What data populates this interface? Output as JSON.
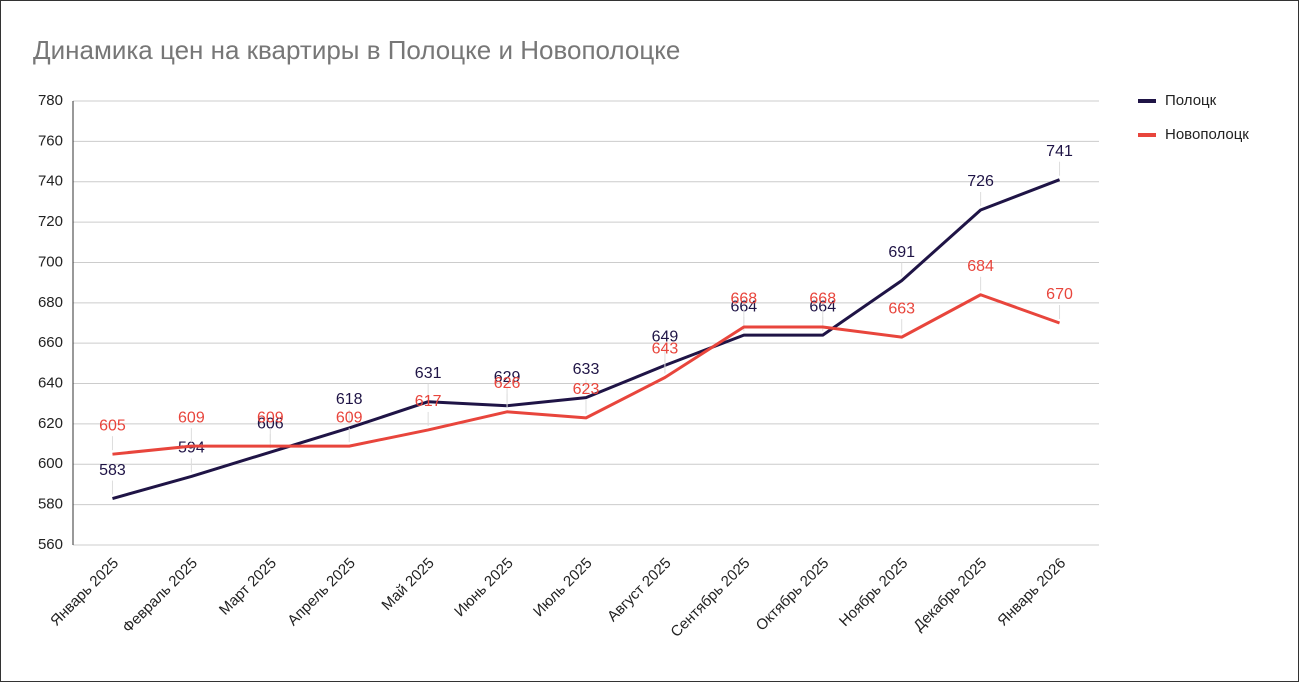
{
  "chart_data": {
    "type": "line",
    "title": "Динамика цен на квартиры в Полоцке и Новополоцке",
    "categories": [
      "Январь 2025",
      "Февраль 2025",
      "Март 2025",
      "Апрель 2025",
      "Май 2025",
      "Июнь 2025",
      "Июль 2025",
      "Август 2025",
      "Сентябрь 2025",
      "Октябрь 2025",
      "Ноябрь 2025",
      "Декабрь 2025",
      "Январь 2026"
    ],
    "series": [
      {
        "name": "Полоцк",
        "color": "#1f1446",
        "values": [
          583,
          594,
          606,
          618,
          631,
          629,
          633,
          649,
          664,
          664,
          691,
          726,
          741
        ]
      },
      {
        "name": "Новополоцк",
        "color": "#e8453c",
        "values": [
          605,
          609,
          609,
          609,
          617,
          626,
          623,
          643,
          668,
          668,
          663,
          684,
          670
        ]
      }
    ],
    "ylim": [
      560,
      780
    ],
    "yticks": [
      560,
      580,
      600,
      620,
      640,
      660,
      680,
      700,
      720,
      740,
      760,
      780
    ],
    "grid": true,
    "legend": "right",
    "data_labels": true
  }
}
